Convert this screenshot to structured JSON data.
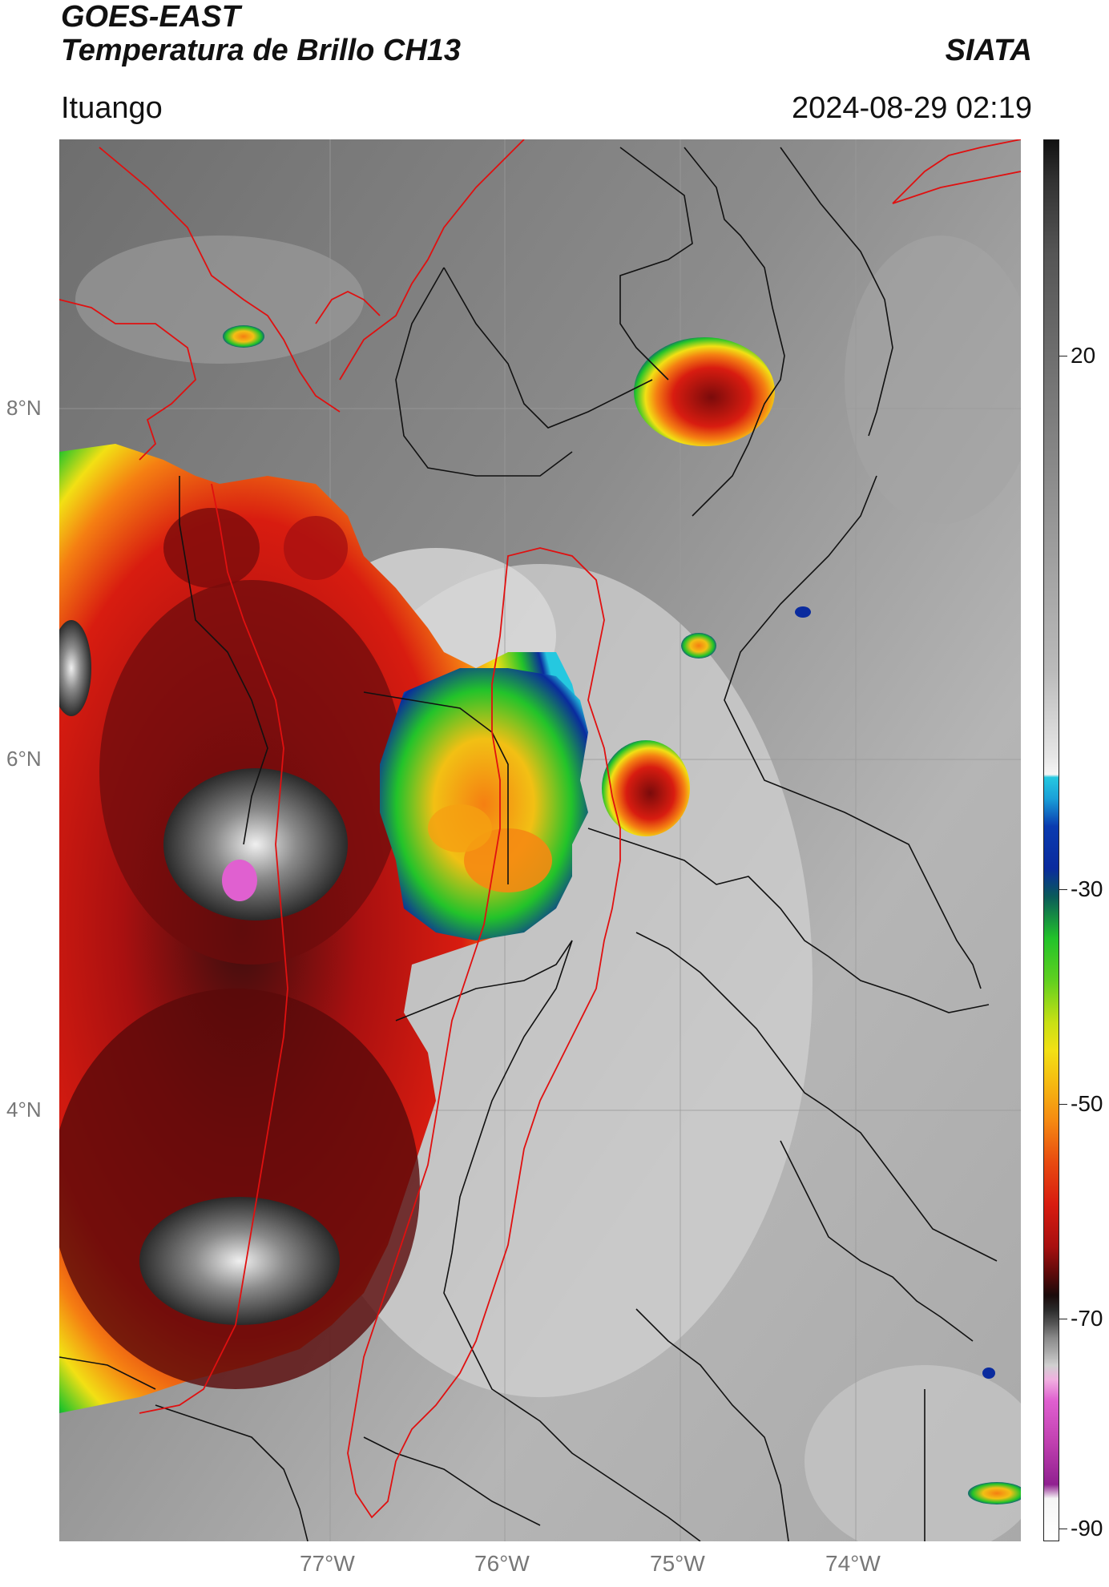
{
  "header": {
    "satellite": "GOES-EAST",
    "product": "Temperatura de Brillo CH13",
    "brand": "SIATA",
    "location": "Ituango",
    "datetime": "2024-08-29 02:19"
  },
  "map": {
    "lat_labels": [
      "8°N",
      "6°N",
      "4°N"
    ],
    "lon_labels": [
      "77°W",
      "76°W",
      "75°W",
      "74°W"
    ],
    "colors": {
      "land_gray": "#8a8a8a",
      "cloud_light": "#d8d8d8",
      "storm_red": "#c41616",
      "storm_dark": "#2a0a0a",
      "storm_orange": "#f58a12",
      "storm_yellow": "#f2e014",
      "storm_green": "#22c32a",
      "storm_blue": "#0a2b9e",
      "storm_cyan": "#25c8e0",
      "storm_pink": "#e060d0",
      "border_red": "#e01010",
      "border_black": "#111111"
    }
  },
  "colorbar": {
    "labels": [
      "20",
      "-30",
      "-50",
      "-70",
      "-90"
    ],
    "units_hint": "",
    "range": [
      -92,
      41
    ]
  }
}
